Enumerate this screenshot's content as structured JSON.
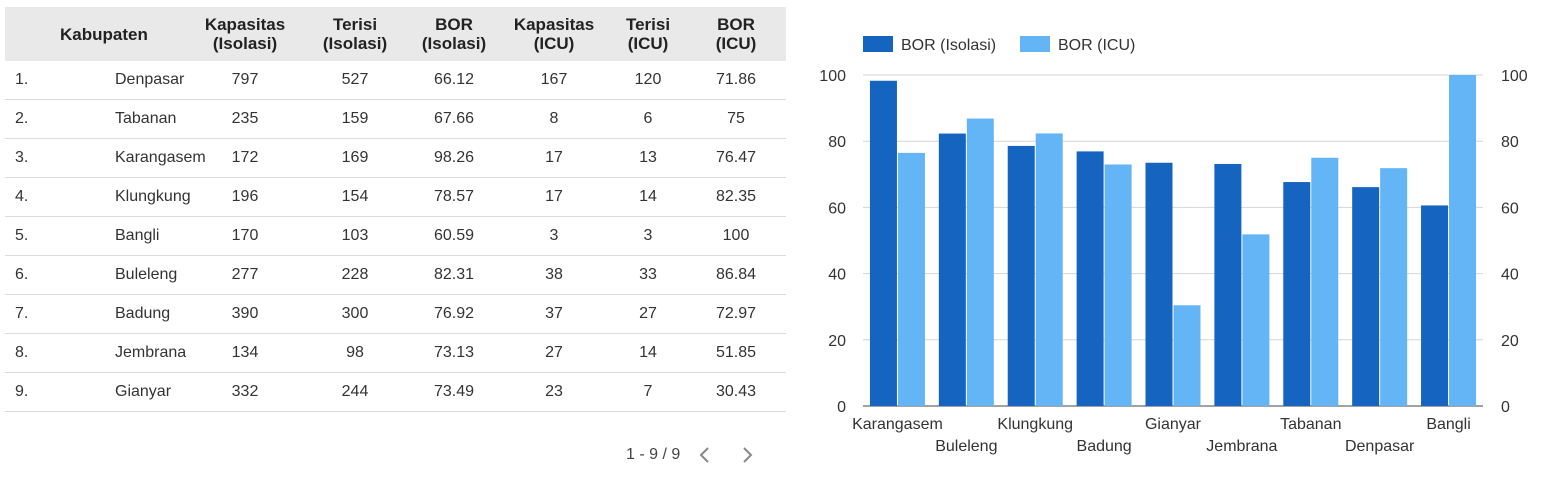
{
  "table": {
    "headers": {
      "kabupaten": "Kabupaten",
      "kap_iso_1": "Kapasitas",
      "kap_iso_2": "(Isolasi)",
      "ter_iso_1": "Terisi",
      "ter_iso_2": "(Isolasi)",
      "bor_iso_1": "BOR",
      "bor_iso_2": "(Isolasi)",
      "kap_icu_1": "Kapasitas",
      "kap_icu_2": "(ICU)",
      "ter_icu_1": "Terisi",
      "ter_icu_2": "(ICU)",
      "bor_icu_1": "BOR",
      "bor_icu_2": "(ICU)"
    },
    "rows": [
      {
        "no": "1.",
        "name": "Denpasar",
        "kap_iso": "797",
        "ter_iso": "527",
        "bor_iso": "66.12",
        "kap_icu": "167",
        "ter_icu": "120",
        "bor_icu": "71.86"
      },
      {
        "no": "2.",
        "name": "Tabanan",
        "kap_iso": "235",
        "ter_iso": "159",
        "bor_iso": "67.66",
        "kap_icu": "8",
        "ter_icu": "6",
        "bor_icu": "75"
      },
      {
        "no": "3.",
        "name": "Karangasem",
        "kap_iso": "172",
        "ter_iso": "169",
        "bor_iso": "98.26",
        "kap_icu": "17",
        "ter_icu": "13",
        "bor_icu": "76.47"
      },
      {
        "no": "4.",
        "name": "Klungkung",
        "kap_iso": "196",
        "ter_iso": "154",
        "bor_iso": "78.57",
        "kap_icu": "17",
        "ter_icu": "14",
        "bor_icu": "82.35"
      },
      {
        "no": "5.",
        "name": "Bangli",
        "kap_iso": "170",
        "ter_iso": "103",
        "bor_iso": "60.59",
        "kap_icu": "3",
        "ter_icu": "3",
        "bor_icu": "100"
      },
      {
        "no": "6.",
        "name": "Buleleng",
        "kap_iso": "277",
        "ter_iso": "228",
        "bor_iso": "82.31",
        "kap_icu": "38",
        "ter_icu": "33",
        "bor_icu": "86.84"
      },
      {
        "no": "7.",
        "name": "Badung",
        "kap_iso": "390",
        "ter_iso": "300",
        "bor_iso": "76.92",
        "kap_icu": "37",
        "ter_icu": "27",
        "bor_icu": "72.97"
      },
      {
        "no": "8.",
        "name": "Jembrana",
        "kap_iso": "134",
        "ter_iso": "98",
        "bor_iso": "73.13",
        "kap_icu": "27",
        "ter_icu": "14",
        "bor_icu": "51.85"
      },
      {
        "no": "9.",
        "name": "Gianyar",
        "kap_iso": "332",
        "ter_iso": "244",
        "bor_iso": "73.49",
        "kap_icu": "23",
        "ter_icu": "7",
        "bor_icu": "30.43"
      }
    ]
  },
  "pagination": {
    "label": "1 - 9 / 9",
    "prev_icon": "chevron-left-icon",
    "next_icon": "chevron-right-icon"
  },
  "chart_data": {
    "type": "bar",
    "categories": [
      "Karangasem",
      "Buleleng",
      "Klungkung",
      "Badung",
      "Gianyar",
      "Jembrana",
      "Tabanan",
      "Denpasar",
      "Bangli"
    ],
    "series": [
      {
        "name": "BOR (Isolasi)",
        "color": "#1565c0",
        "values": [
          98.26,
          82.31,
          78.57,
          76.92,
          73.49,
          73.13,
          67.66,
          66.12,
          60.59
        ]
      },
      {
        "name": "BOR (ICU)",
        "color": "#64b5f6",
        "values": [
          76.47,
          86.84,
          82.35,
          72.97,
          30.43,
          51.85,
          75,
          71.86,
          100
        ]
      }
    ],
    "ylim": [
      0,
      100
    ],
    "yticks": [
      0,
      20,
      40,
      60,
      80,
      100
    ],
    "y2ticks": [
      0,
      20,
      40,
      60,
      80,
      100
    ],
    "grid": true,
    "legend": "top-left",
    "xlabel": "",
    "ylabel": ""
  }
}
